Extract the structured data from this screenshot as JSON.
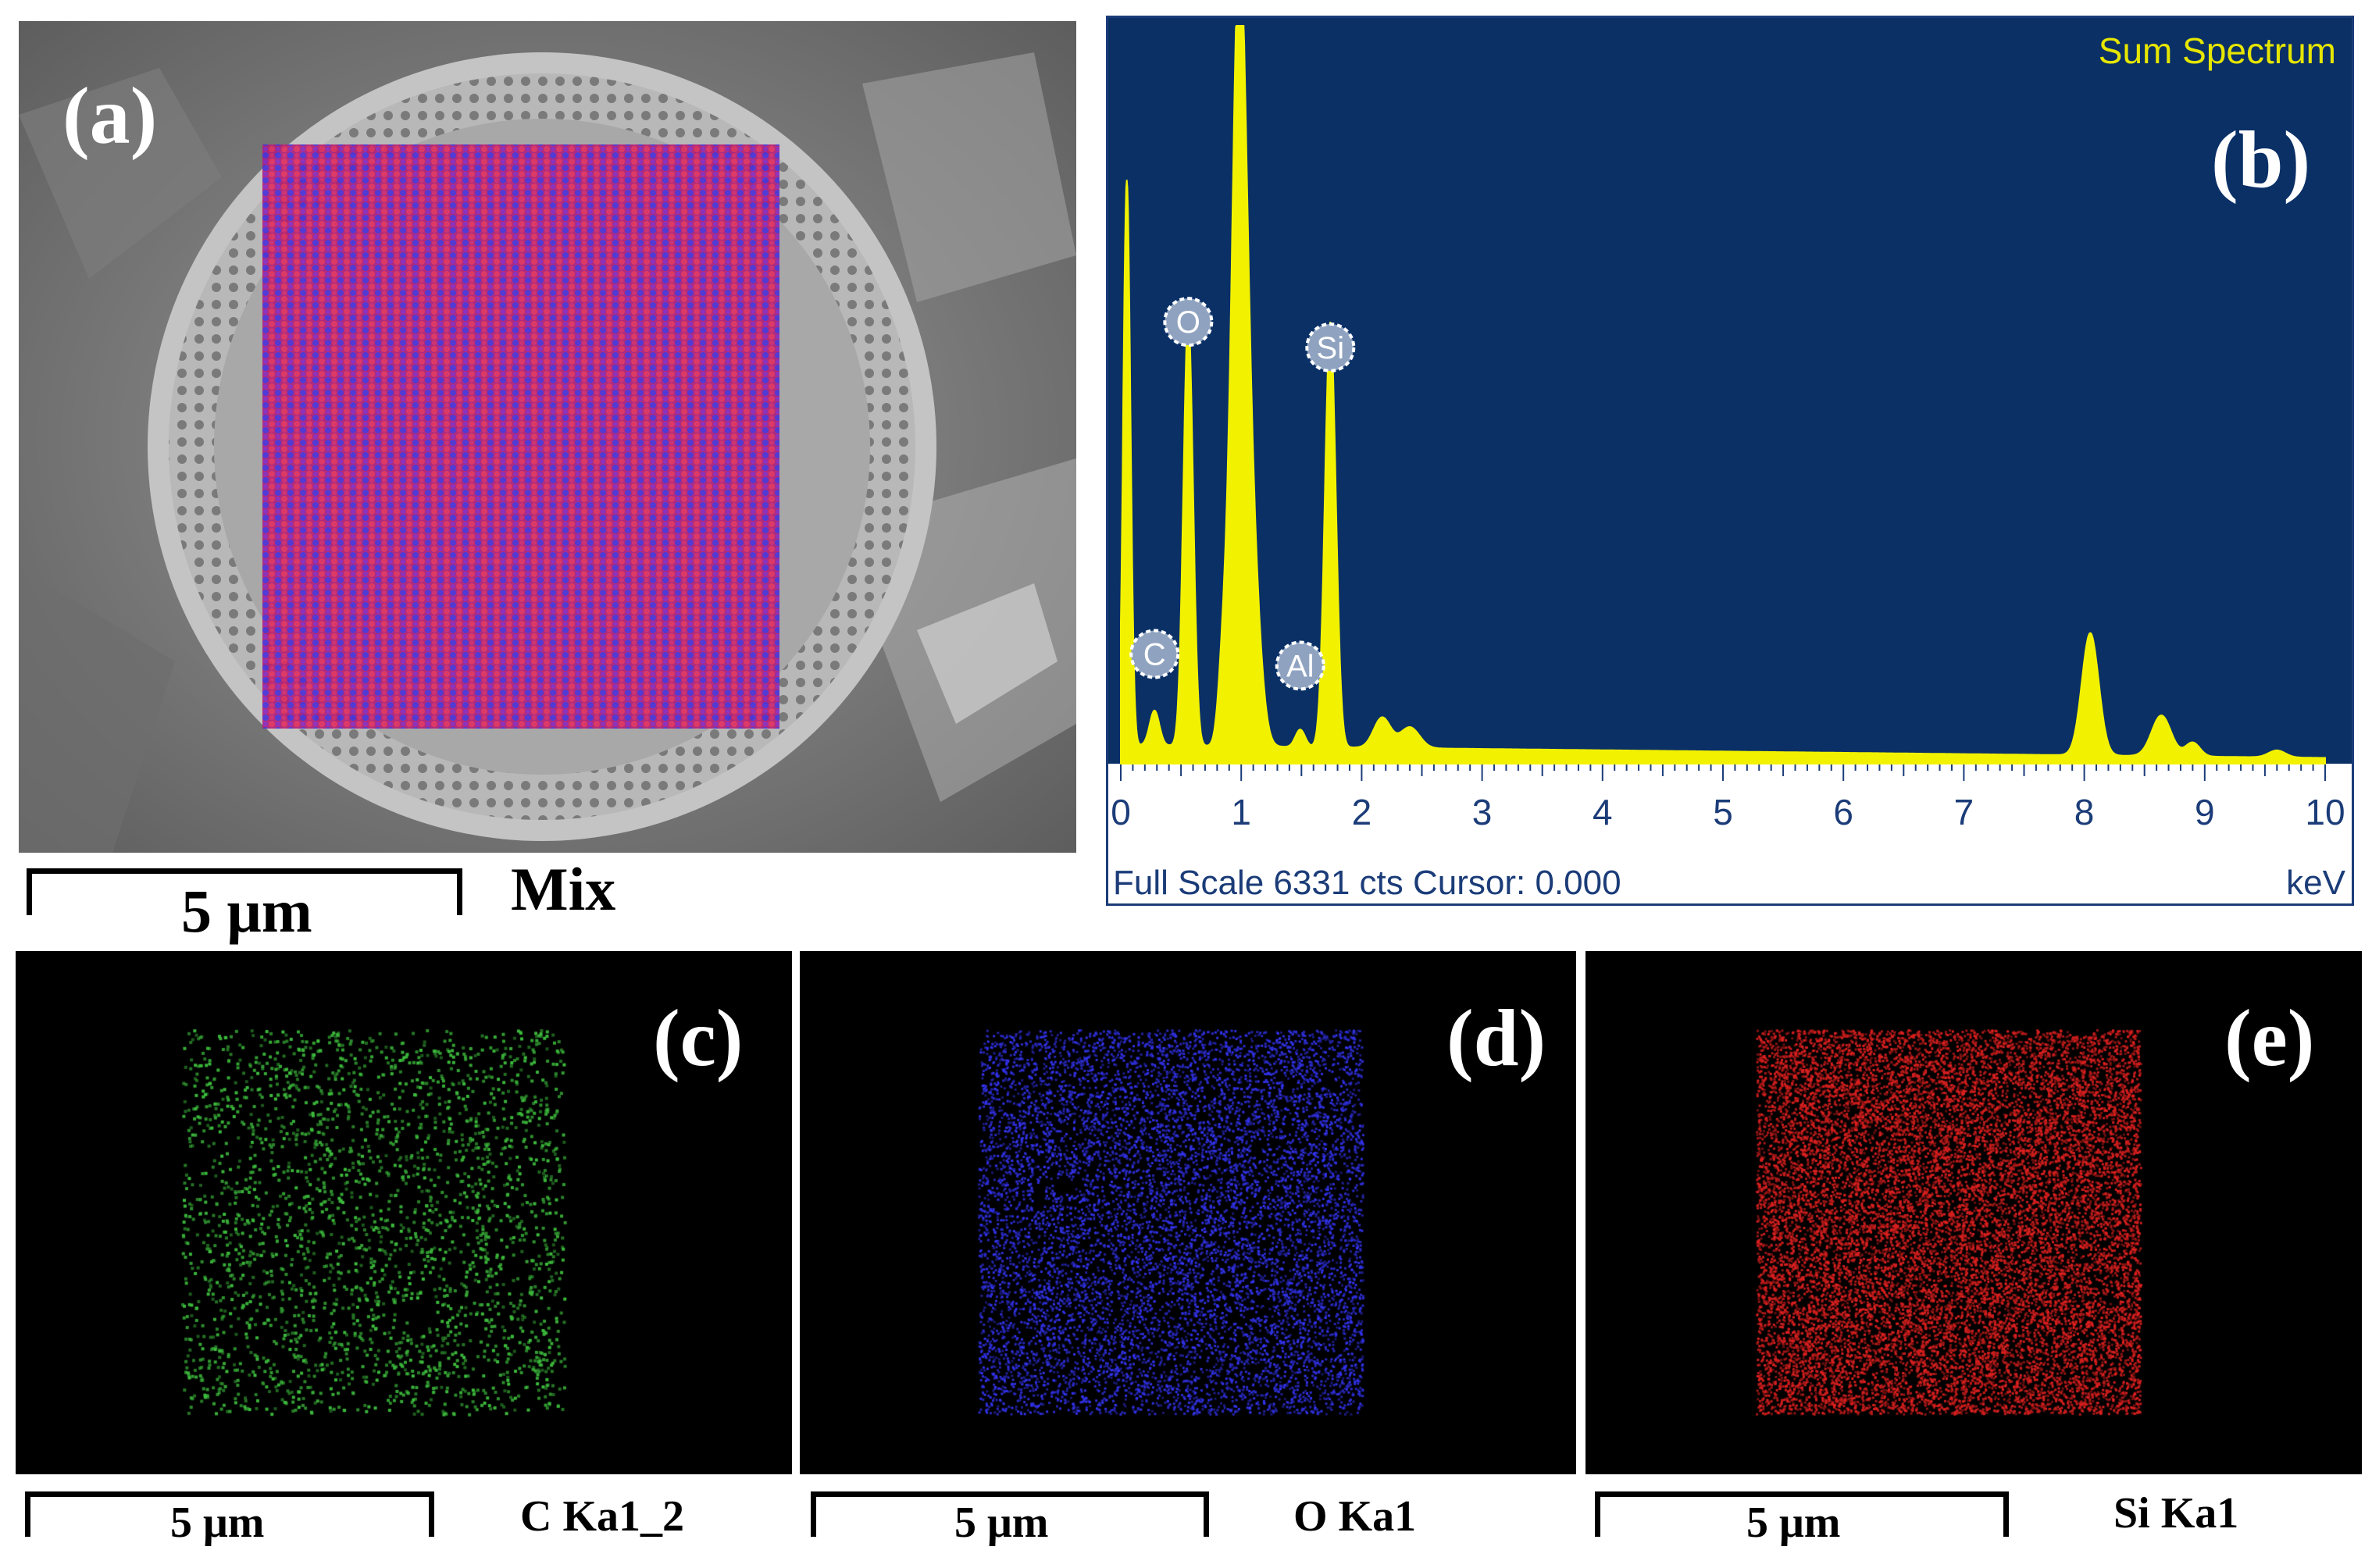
{
  "panels": {
    "a": {
      "letter": "(a)",
      "scale_label": "5 μm",
      "map_label": "Mix"
    },
    "b": {
      "letter": "(b)"
    },
    "c": {
      "letter": "(c)",
      "scale_label": "5 μm",
      "map_label": "C Ka1_2"
    },
    "d": {
      "letter": "(d)",
      "scale_label": "5 μm",
      "map_label": "O Ka1"
    },
    "e": {
      "letter": "(e)",
      "scale_label": "5 μm",
      "map_label": "Si Ka1"
    }
  },
  "colors": {
    "spectrum_bg": "#0a3066",
    "spectrum_fill": "#f2f200",
    "spectrum_title": "#e6e600",
    "map_c": "#3dbd3d",
    "map_o": "#3333ee",
    "map_si": "#dd2020",
    "mix_overlay": [
      "#e0206a",
      "#5030e0",
      "#c04080"
    ]
  },
  "chart_data": {
    "type": "area",
    "title": "Sum Spectrum",
    "xlabel": "keV",
    "footer": "Full Scale 6331 cts Cursor: 0.000",
    "xlim": [
      0,
      10
    ],
    "ylim": [
      0,
      6331
    ],
    "xticks": [
      "0",
      "1",
      "2",
      "3",
      "4",
      "5",
      "6",
      "7",
      "8",
      "9",
      "10"
    ],
    "peaks": [
      {
        "x": 0.05,
        "y": 4850,
        "w": 0.03
      },
      {
        "x": 0.28,
        "y": 300,
        "w": 0.04
      },
      {
        "x": 0.56,
        "y": 3700,
        "w": 0.04
      },
      {
        "x": 0.85,
        "y": 650,
        "w": 0.04
      },
      {
        "x": 0.98,
        "y": 6331,
        "w": 0.06
      },
      {
        "x": 1.08,
        "y": 1700,
        "w": 0.07
      },
      {
        "x": 1.49,
        "y": 150,
        "w": 0.04
      },
      {
        "x": 1.74,
        "y": 3650,
        "w": 0.045
      },
      {
        "x": 2.17,
        "y": 260,
        "w": 0.07
      },
      {
        "x": 2.4,
        "y": 180,
        "w": 0.08
      },
      {
        "x": 8.05,
        "y": 1050,
        "w": 0.07
      },
      {
        "x": 8.64,
        "y": 350,
        "w": 0.08
      },
      {
        "x": 8.9,
        "y": 120,
        "w": 0.06
      },
      {
        "x": 9.6,
        "y": 60,
        "w": 0.07
      }
    ],
    "background": {
      "start": 160,
      "end": 50
    },
    "element_labels": [
      {
        "name": "C",
        "x": 0.28,
        "y": 700
      },
      {
        "name": "O",
        "x": 0.56,
        "y": 3550
      },
      {
        "name": "Al",
        "x": 1.49,
        "y": 600
      },
      {
        "name": "Si",
        "x": 1.74,
        "y": 3330
      }
    ]
  }
}
